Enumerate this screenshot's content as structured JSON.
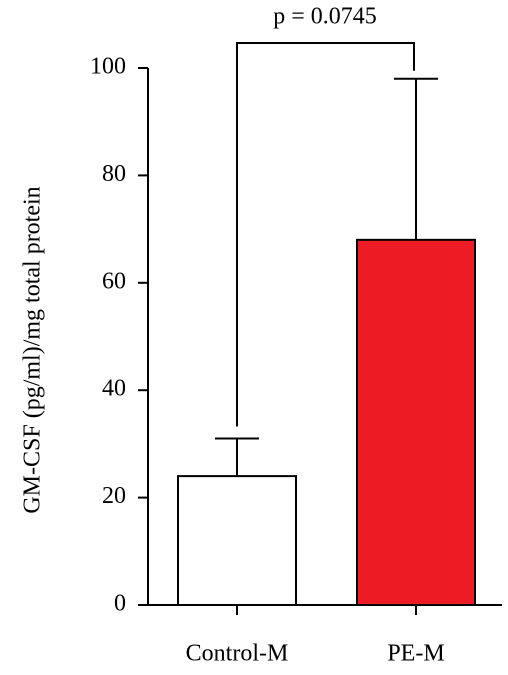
{
  "chart_data": {
    "type": "bar",
    "ylabel": "GM-CSF (pg/ml)/mg total protein",
    "annotation": "p = 0.0745",
    "categories": [
      "Control-M",
      "PE-M"
    ],
    "values": [
      24,
      68
    ],
    "errors": [
      7,
      30
    ],
    "colors": [
      "#ffffff",
      "#ed1c24"
    ],
    "ylim": [
      0,
      100
    ],
    "yticks": [
      0,
      20,
      40,
      60,
      80,
      100
    ],
    "grid": false
  }
}
